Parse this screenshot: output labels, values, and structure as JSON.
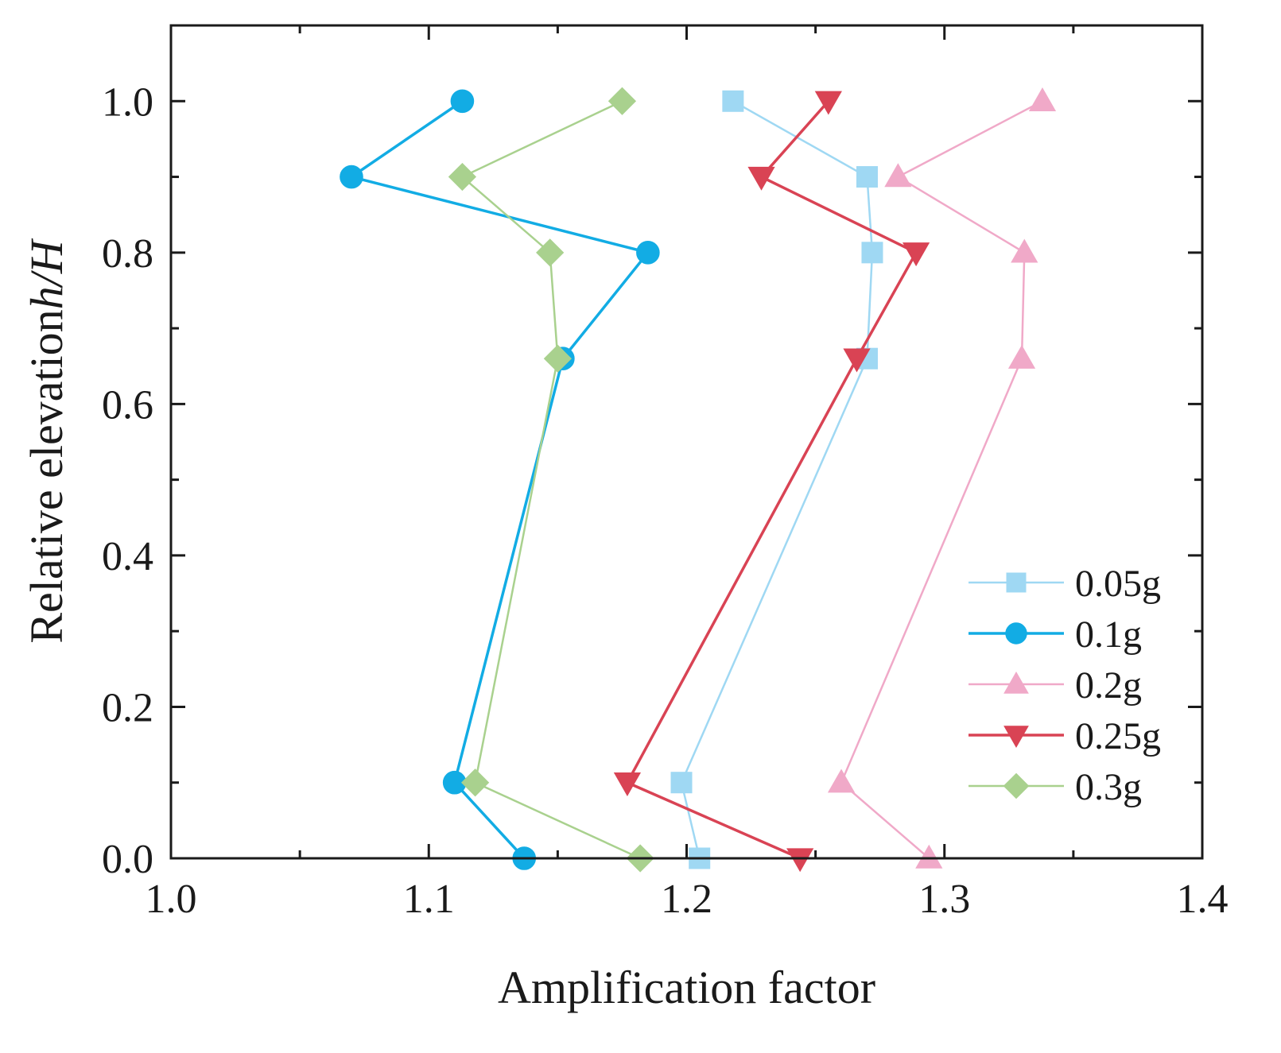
{
  "chart_data": {
    "type": "line",
    "title": "",
    "xlabel": "Amplification factor",
    "ylabel_prefix": "Relative elevation",
    "ylabel_italic": "h/H",
    "xlim": [
      1.0,
      1.4
    ],
    "ylim": [
      0.0,
      1.1
    ],
    "x_ticks": [
      1.0,
      1.1,
      1.2,
      1.3,
      1.4
    ],
    "x_tick_labels": [
      "1.0",
      "1.1",
      "1.2",
      "1.3",
      "1.4"
    ],
    "x_minor_ticks": [
      1.05,
      1.15,
      1.25,
      1.35
    ],
    "y_ticks": [
      0.0,
      0.2,
      0.4,
      0.6,
      0.8,
      1.0
    ],
    "y_tick_labels": [
      "0.0",
      "0.2",
      "0.4",
      "0.6",
      "0.8",
      "1.0"
    ],
    "y_minor_ticks": [
      0.1,
      0.3,
      0.5,
      0.7,
      0.9
    ],
    "grid": false,
    "legend_position": "bottom-right",
    "series": [
      {
        "name": "0.05g",
        "marker": "square",
        "color": "#9fd8f3",
        "points": [
          {
            "x": 1.205,
            "y": 0.0
          },
          {
            "x": 1.198,
            "y": 0.1
          },
          {
            "x": 1.27,
            "y": 0.66
          },
          {
            "x": 1.272,
            "y": 0.8
          },
          {
            "x": 1.27,
            "y": 0.9
          },
          {
            "x": 1.218,
            "y": 1.0
          }
        ]
      },
      {
        "name": "0.1g",
        "marker": "circle",
        "color": "#12ace4",
        "points": [
          {
            "x": 1.137,
            "y": 0.0
          },
          {
            "x": 1.11,
            "y": 0.1
          },
          {
            "x": 1.152,
            "y": 0.66
          },
          {
            "x": 1.185,
            "y": 0.8
          },
          {
            "x": 1.07,
            "y": 0.9
          },
          {
            "x": 1.113,
            "y": 1.0
          }
        ]
      },
      {
        "name": "0.2g",
        "marker": "triangle-up",
        "color": "#f0a9c8",
        "points": [
          {
            "x": 1.294,
            "y": 0.0
          },
          {
            "x": 1.26,
            "y": 0.1
          },
          {
            "x": 1.33,
            "y": 0.66
          },
          {
            "x": 1.331,
            "y": 0.8
          },
          {
            "x": 1.282,
            "y": 0.9
          },
          {
            "x": 1.338,
            "y": 1.0
          }
        ]
      },
      {
        "name": "0.25g",
        "marker": "triangle-down",
        "color": "#d94354",
        "points": [
          {
            "x": 1.244,
            "y": 0.0
          },
          {
            "x": 1.177,
            "y": 0.1
          },
          {
            "x": 1.266,
            "y": 0.66
          },
          {
            "x": 1.289,
            "y": 0.8
          },
          {
            "x": 1.229,
            "y": 0.9
          },
          {
            "x": 1.255,
            "y": 1.0
          }
        ]
      },
      {
        "name": "0.3g",
        "marker": "diamond",
        "color": "#a9d18e",
        "points": [
          {
            "x": 1.182,
            "y": 0.0
          },
          {
            "x": 1.118,
            "y": 0.1
          },
          {
            "x": 1.15,
            "y": 0.66
          },
          {
            "x": 1.147,
            "y": 0.8
          },
          {
            "x": 1.113,
            "y": 0.9
          },
          {
            "x": 1.175,
            "y": 1.0
          }
        ]
      }
    ]
  }
}
